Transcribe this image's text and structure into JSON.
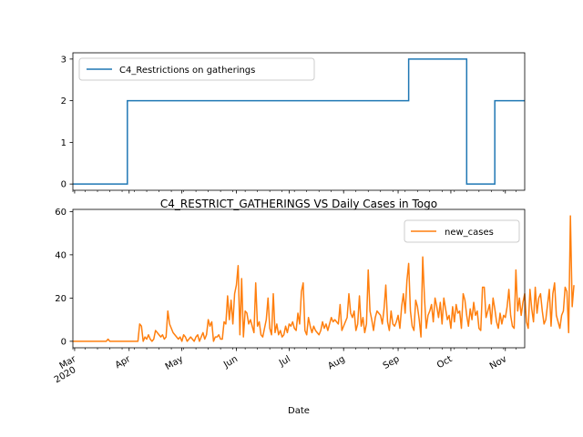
{
  "chart_data": [
    {
      "type": "line",
      "title": "",
      "xlabel": "",
      "ylabel": "",
      "ylim": [
        -0.15,
        3.15
      ],
      "yticks": [
        0,
        1,
        2,
        3
      ],
      "legend_position": "top-left",
      "grid": false,
      "series": [
        {
          "name": "C4_Restrictions on gatherings",
          "color": "#1f77b4",
          "x": [
            "2020-02-29",
            "2020-03-31",
            "2020-03-31",
            "2020-09-07",
            "2020-09-07",
            "2020-10-10",
            "2020-10-10",
            "2020-10-26",
            "2020-10-26",
            "2020-11-12"
          ],
          "values": [
            0,
            0,
            2,
            2,
            3,
            3,
            0,
            0,
            2,
            2
          ]
        }
      ]
    },
    {
      "type": "line",
      "title": "C4_RESTRICT_GATHERINGS VS Daily Cases in Togo",
      "xlabel": "Date",
      "ylabel": "",
      "ylim": [
        -3,
        61
      ],
      "yticks": [
        0,
        20,
        40,
        60
      ],
      "legend_position": "top-right",
      "grid": false,
      "x_tick_labels": [
        {
          "date": "2020-03-01",
          "label": "Mar",
          "sub": "2020"
        },
        {
          "date": "2020-04-01",
          "label": "Apr"
        },
        {
          "date": "2020-05-01",
          "label": "May"
        },
        {
          "date": "2020-06-01",
          "label": "Jun"
        },
        {
          "date": "2020-07-01",
          "label": "Jul"
        },
        {
          "date": "2020-08-01",
          "label": "Aug"
        },
        {
          "date": "2020-09-01",
          "label": "Sep"
        },
        {
          "date": "2020-10-01",
          "label": "Oct"
        },
        {
          "date": "2020-11-01",
          "label": "Nov"
        }
      ],
      "xlim": [
        "2020-02-29",
        "2020-11-12"
      ],
      "series": [
        {
          "name": "new_cases",
          "color": "#ff7f0e",
          "x_start": "2020-02-29",
          "step_days": 1,
          "values": [
            0,
            0,
            0,
            0,
            0,
            0,
            0,
            0,
            0,
            0,
            0,
            0,
            0,
            0,
            0,
            0,
            0,
            0,
            0,
            0,
            1,
            0,
            0,
            0,
            0,
            0,
            0,
            0,
            0,
            0,
            0,
            0,
            0,
            0,
            0,
            0,
            0,
            0,
            8,
            7,
            0,
            2,
            1,
            3,
            1,
            0,
            1,
            5,
            4,
            3,
            2,
            3,
            1,
            2,
            14,
            8,
            6,
            4,
            3,
            2,
            1,
            2,
            0,
            3,
            2,
            0,
            1,
            2,
            1,
            0,
            2,
            3,
            0,
            2,
            4,
            1,
            3,
            10,
            7,
            9,
            0,
            2,
            2,
            3,
            1,
            1,
            9,
            8,
            21,
            10,
            19,
            8,
            22,
            26,
            35,
            3,
            29,
            2,
            14,
            13,
            8,
            10,
            7,
            4,
            27,
            7,
            9,
            3,
            2,
            6,
            10,
            20,
            6,
            3,
            22,
            4,
            8,
            3,
            5,
            2,
            3,
            7,
            4,
            8,
            7,
            9,
            6,
            5,
            13,
            8,
            23,
            27,
            5,
            3,
            11,
            7,
            4,
            7,
            5,
            4,
            3,
            5,
            9,
            6,
            8,
            5,
            8,
            11,
            9,
            10,
            9,
            8,
            17,
            5,
            7,
            9,
            11,
            22,
            13,
            11,
            14,
            5,
            8,
            21,
            7,
            11,
            4,
            8,
            33,
            14,
            10,
            5,
            11,
            14,
            13,
            12,
            8,
            15,
            26,
            9,
            5,
            14,
            8,
            7,
            9,
            12,
            6,
            16,
            22,
            13,
            28,
            36,
            14,
            7,
            5,
            19,
            16,
            10,
            2,
            39,
            20,
            6,
            12,
            14,
            17,
            9,
            20,
            16,
            11,
            18,
            8,
            20,
            15,
            10,
            12,
            6,
            16,
            9,
            17,
            13,
            14,
            6,
            22,
            19,
            12,
            7,
            15,
            10,
            18,
            12,
            14,
            6,
            5,
            25,
            25,
            11,
            14,
            17,
            8,
            20,
            15,
            9,
            6,
            13,
            8,
            12,
            11,
            16,
            24,
            12,
            7,
            6,
            33,
            14,
            20,
            12,
            18,
            22,
            9,
            6,
            24,
            15,
            9,
            25,
            13,
            20,
            22,
            14,
            8,
            10,
            17,
            24,
            7,
            22,
            27,
            12,
            9,
            6,
            12,
            14,
            25,
            23,
            4,
            58,
            16,
            26
          ]
        }
      ]
    }
  ]
}
